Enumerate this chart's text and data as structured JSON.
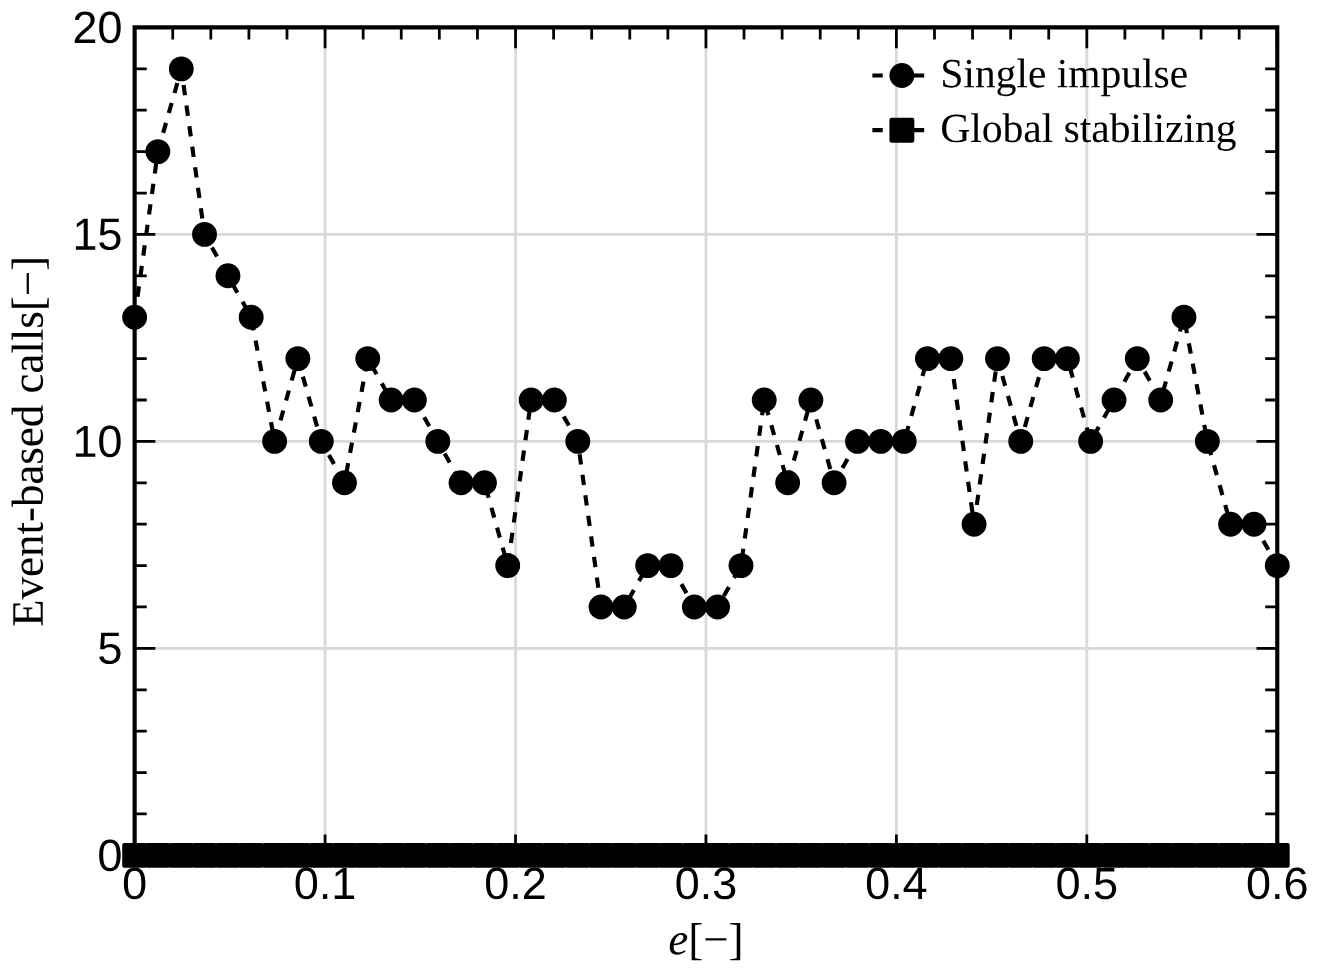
{
  "chart_data": {
    "type": "line",
    "xlabel": "*e*[−]",
    "ylabel": "Event-based calls[−]",
    "x": [
      0,
      0.0122,
      0.0245,
      0.0367,
      0.049,
      0.0612,
      0.0735,
      0.0857,
      0.098,
      0.1102,
      0.1224,
      0.1347,
      0.1469,
      0.1592,
      0.1714,
      0.1837,
      0.1959,
      0.2082,
      0.2204,
      0.2327,
      0.2449,
      0.2571,
      0.2694,
      0.2816,
      0.2939,
      0.3061,
      0.3184,
      0.3306,
      0.3429,
      0.3551,
      0.3673,
      0.3796,
      0.3918,
      0.4041,
      0.4163,
      0.4286,
      0.4408,
      0.4531,
      0.4653,
      0.4776,
      0.4898,
      0.502,
      0.5143,
      0.5265,
      0.5388,
      0.551,
      0.5633,
      0.5755,
      0.5878,
      0.6
    ],
    "series": [
      {
        "name": "Single impulse",
        "color": "#000000",
        "marker": "circle",
        "line_style": "dashed",
        "values": [
          13,
          17,
          19,
          15,
          14,
          13,
          10,
          12,
          10,
          9,
          12,
          11,
          11,
          10,
          9,
          9,
          7,
          11,
          11,
          10,
          6,
          6,
          7,
          7,
          6,
          6,
          7,
          11,
          9,
          11,
          9,
          10,
          10,
          10,
          12,
          12,
          8,
          12,
          10,
          12,
          12,
          10,
          11,
          12,
          11,
          13,
          10,
          8,
          8,
          7
        ]
      },
      {
        "name": "Global stabilizing",
        "color": "#000000",
        "marker": "square",
        "line_style": "dashed",
        "values": [
          0,
          0,
          0,
          0,
          0,
          0,
          0,
          0,
          0,
          0,
          0,
          0,
          0,
          0,
          0,
          0,
          0,
          0,
          0,
          0,
          0,
          0,
          0,
          0,
          0,
          0,
          0,
          0,
          0,
          0,
          0,
          0,
          0,
          0,
          0,
          0,
          0,
          0,
          0,
          0,
          0,
          0,
          0,
          0,
          0,
          0,
          0,
          0,
          0,
          0
        ]
      }
    ],
    "xlim": [
      0,
      0.6
    ],
    "ylim": [
      0,
      20
    ],
    "xticks": [
      0,
      0.1,
      0.2,
      0.3,
      0.4,
      0.5,
      0.6
    ],
    "yticks": [
      0,
      5,
      10,
      15,
      20
    ],
    "grid": true,
    "legend": "top right"
  }
}
